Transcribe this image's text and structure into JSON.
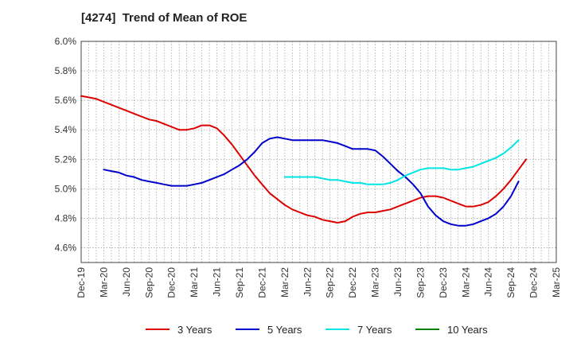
{
  "chart_data": {
    "type": "line",
    "title": "[4274]  Trend of Mean of ROE",
    "xlabel": "",
    "ylabel": "",
    "x_tick_labels": [
      "Dec-19",
      "Mar-20",
      "Jun-20",
      "Sep-20",
      "Dec-20",
      "Mar-21",
      "Jun-21",
      "Sep-21",
      "Dec-21",
      "Mar-22",
      "Jun-22",
      "Sep-22",
      "Dec-22",
      "Mar-23",
      "Jun-23",
      "Sep-23",
      "Dec-23",
      "Mar-24",
      "Jun-24",
      "Sep-24",
      "Dec-24",
      "Mar-25"
    ],
    "y_ticks": [
      4.6,
      4.8,
      5.0,
      5.2,
      5.4,
      5.6,
      5.8,
      6.0
    ],
    "y_tick_labels": [
      "4.6%",
      "4.8%",
      "5.0%",
      "5.2%",
      "5.4%",
      "5.6%",
      "5.8%",
      "6.0%"
    ],
    "ylim": [
      4.5,
      6.0
    ],
    "x_range_months": [
      0,
      63
    ],
    "grid": true,
    "legend_position": "bottom",
    "series": [
      {
        "name": "3 Years",
        "color": "#dd0000",
        "start_month": 0,
        "values": [
          5.63,
          5.62,
          5.61,
          5.59,
          5.57,
          5.55,
          5.53,
          5.51,
          5.49,
          5.47,
          5.46,
          5.44,
          5.42,
          5.4,
          5.4,
          5.41,
          5.43,
          5.43,
          5.41,
          5.36,
          5.3,
          5.23,
          5.16,
          5.09,
          5.03,
          4.97,
          4.93,
          4.89,
          4.86,
          4.84,
          4.82,
          4.81,
          4.79,
          4.78,
          4.77,
          4.78,
          4.81,
          4.83,
          4.84,
          4.84,
          4.85,
          4.86,
          4.88,
          4.9,
          4.92,
          4.94,
          4.95,
          4.95,
          4.94,
          4.92,
          4.9,
          4.88,
          4.88,
          4.89,
          4.91,
          4.95,
          5.0,
          5.06,
          5.13,
          5.2
        ]
      },
      {
        "name": "5 Years",
        "color": "#0000cc",
        "start_month": 3,
        "values": [
          5.13,
          5.12,
          5.11,
          5.09,
          5.08,
          5.06,
          5.05,
          5.04,
          5.03,
          5.02,
          5.02,
          5.02,
          5.03,
          5.04,
          5.06,
          5.08,
          5.1,
          5.13,
          5.16,
          5.2,
          5.25,
          5.31,
          5.34,
          5.35,
          5.34,
          5.33,
          5.33,
          5.33,
          5.33,
          5.33,
          5.32,
          5.31,
          5.29,
          5.27,
          5.27,
          5.27,
          5.26,
          5.22,
          5.17,
          5.12,
          5.08,
          5.03,
          4.97,
          4.88,
          4.82,
          4.78,
          4.76,
          4.75,
          4.75,
          4.76,
          4.78,
          4.8,
          4.83,
          4.88,
          4.95,
          5.05
        ]
      },
      {
        "name": "7 Years",
        "color": "#00e5e5",
        "start_month": 27,
        "values": [
          5.08,
          5.08,
          5.08,
          5.08,
          5.08,
          5.07,
          5.06,
          5.06,
          5.05,
          5.04,
          5.04,
          5.03,
          5.03,
          5.03,
          5.04,
          5.06,
          5.09,
          5.11,
          5.13,
          5.14,
          5.14,
          5.14,
          5.13,
          5.13,
          5.14,
          5.15,
          5.17,
          5.19,
          5.21,
          5.24,
          5.28,
          5.33
        ]
      },
      {
        "name": "10 Years",
        "color": "#008000",
        "start_month": 0,
        "values": []
      }
    ]
  }
}
